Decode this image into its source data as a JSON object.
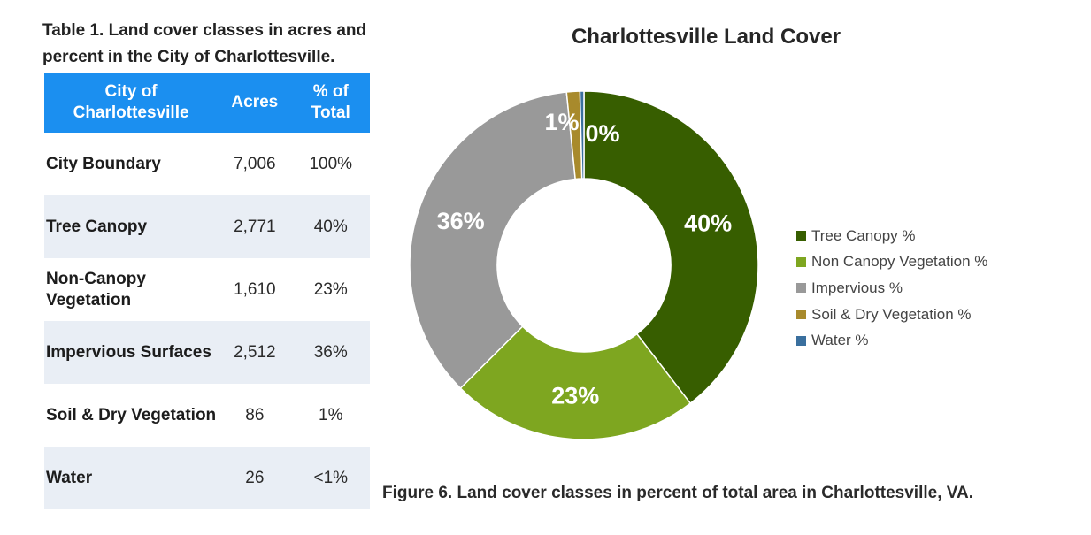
{
  "table": {
    "caption": "Table 1. Land cover classes in acres and percent in the City of Charlottesville.",
    "headers": [
      "City of Charlottesville",
      "Acres",
      "% of Total"
    ],
    "rows": [
      {
        "class": "City Boundary",
        "acres": "7,006",
        "percent": "100%"
      },
      {
        "class": "Tree Canopy",
        "acres": "2,771",
        "percent": "40%"
      },
      {
        "class": "Non-Canopy Vegetation",
        "acres": "1,610",
        "percent": "23%"
      },
      {
        "class": "Impervious Surfaces",
        "acres": "2,512",
        "percent": "36%"
      },
      {
        "class": "Soil & Dry Vegetation",
        "acres": "86",
        "percent": "1%"
      },
      {
        "class": "Water",
        "acres": "26",
        "percent": "<1%"
      }
    ]
  },
  "chart_data": {
    "type": "pie",
    "title": "Charlottesville Land Cover",
    "legend_position": "right",
    "slices": [
      {
        "label": "Tree Canopy %",
        "value": 39.55,
        "display": "40%",
        "color": "#375e00"
      },
      {
        "label": "Non Canopy Vegetation %",
        "value": 22.98,
        "display": "23%",
        "color": "#7ea620"
      },
      {
        "label": "Impervious %",
        "value": 35.86,
        "display": "36%",
        "color": "#999999"
      },
      {
        "label": "Soil & Dry Vegetation %",
        "value": 1.23,
        "display": "1%",
        "color": "#a88a2c"
      },
      {
        "label": "Water %",
        "value": 0.37,
        "display": "0%",
        "color": "#3a6f9e"
      }
    ]
  },
  "figure_caption": "Figure 6. Land cover classes in percent of total area in Charlottesville, VA."
}
